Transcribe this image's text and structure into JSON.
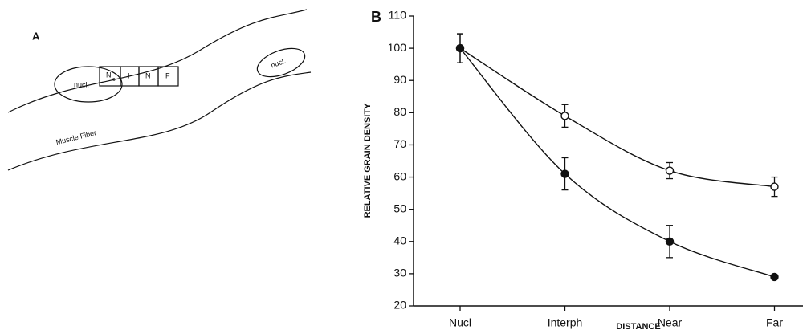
{
  "diagram": {
    "panel_label": "A",
    "nuclei": [
      "nucl.",
      "nucl."
    ],
    "boxes": [
      "N",
      "I",
      "N",
      "F"
    ],
    "box_subscript": "c",
    "fiber_label": "Muscle Fiber"
  },
  "chart_data": {
    "type": "line",
    "panel_label": "B",
    "y_label": "RELATIVE GRAIN DENSITY",
    "x_label": "DISTANCE",
    "categories": [
      "Nucl",
      "Interph",
      "Near",
      "Far"
    ],
    "series": [
      {
        "color": "#111111",
        "marker": "open",
        "values": [
          100,
          79,
          62,
          57
        ],
        "errors": [
          4.5,
          3.5,
          2.5,
          3
        ]
      },
      {
        "color": "#111111",
        "marker": "filled",
        "values": [
          100,
          61,
          40,
          29
        ],
        "errors": [
          4.5,
          5,
          5,
          0
        ]
      }
    ],
    "ylim": [
      20,
      110
    ],
    "yticks": [
      20,
      30,
      40,
      50,
      60,
      70,
      80,
      90,
      100,
      110
    ]
  }
}
